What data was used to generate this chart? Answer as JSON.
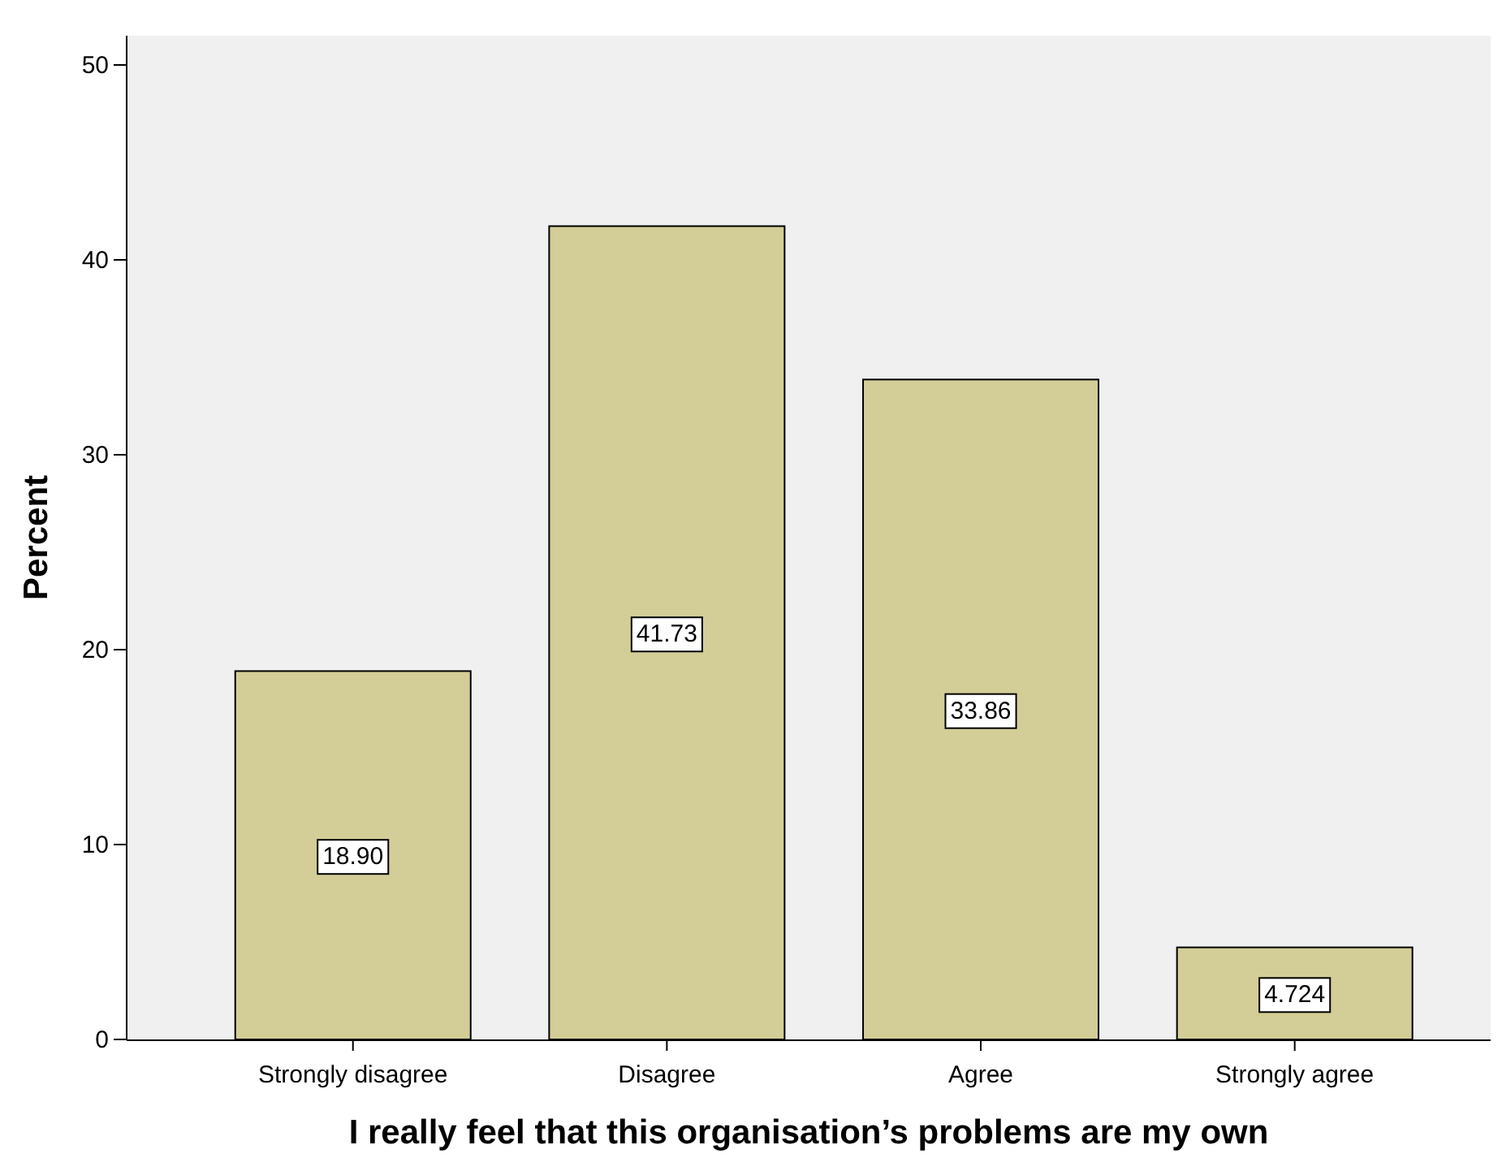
{
  "chart_data": {
    "type": "bar",
    "xlabel": "I really feel that this organisation’s problems are my own",
    "ylabel": "Percent",
    "categories": [
      "Strongly disagree",
      "Disagree",
      "Agree",
      "Strongly agree"
    ],
    "values": [
      18.9,
      41.73,
      33.86,
      4.724
    ],
    "value_labels": [
      "18.90",
      "41.73",
      "33.86",
      "4.724"
    ],
    "color": "#d3ce97",
    "ylim": [
      0,
      51.5
    ],
    "yticks": [
      0,
      10,
      20,
      30,
      40,
      50
    ],
    "grid": false,
    "legend": false
  }
}
